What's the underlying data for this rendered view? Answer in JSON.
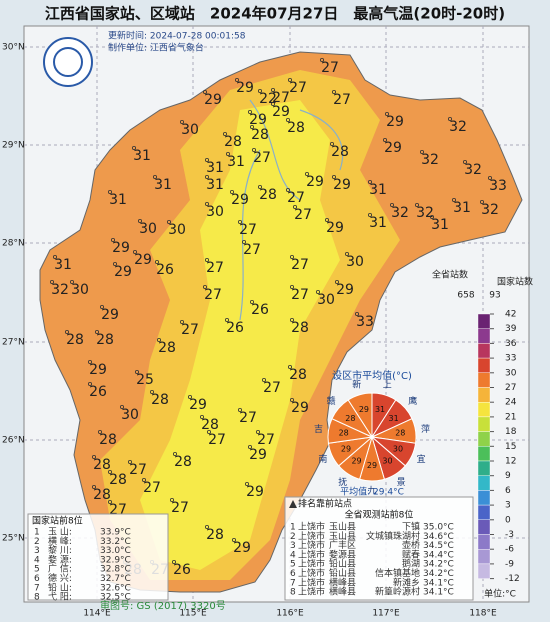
{
  "header": {
    "title": "江西省国家站、区域站　2024年07月27日　最高气温(20时-20时)",
    "update_time": "更新时间: 2024-07-28 00:01:58",
    "producer": "制作单位: 江西省气象台"
  },
  "map": {
    "lat_labels": [
      "30°N",
      "29°N",
      "28°N",
      "27°N",
      "26°N",
      "25°N"
    ],
    "lon_labels": [
      "114°E",
      "115°E",
      "116°E",
      "117°E",
      "118°E"
    ],
    "stations": [
      29,
      22,
      27,
      27,
      27,
      29,
      29,
      29,
      28,
      27,
      29,
      32,
      31,
      30,
      28,
      28,
      27,
      31,
      31,
      31,
      28,
      29,
      32,
      32,
      33,
      31,
      31,
      30,
      29,
      28,
      27,
      29,
      29,
      31,
      32,
      32,
      31,
      32,
      30,
      30,
      27,
      27,
      29,
      31,
      31,
      31,
      29,
      29,
      29,
      26,
      27,
      27,
      27,
      30,
      32,
      30,
      27,
      26,
      27,
      30,
      29,
      29,
      27,
      26,
      28,
      33,
      28,
      28,
      28,
      29,
      25,
      27,
      28,
      26,
      28,
      29,
      29,
      30,
      28,
      27,
      27,
      28,
      27,
      28,
      29,
      28,
      27,
      28,
      28,
      27,
      27,
      29,
      27,
      28,
      29,
      28,
      27,
      26
    ],
    "approval": "审图号: GS (2017) 3320号"
  },
  "pie": {
    "title": "设区市平均值(°C)",
    "cities": [
      "上",
      "鹰",
      "萍",
      "宜",
      "景",
      "九",
      "抚",
      "南",
      "吉",
      "赣",
      "新"
    ],
    "values": [
      31,
      31,
      28,
      30,
      30,
      29,
      29,
      29,
      28,
      28,
      29
    ],
    "average": "平均值: 29.4°C"
  },
  "legend": {
    "all_label": "全省站数",
    "all_count": 658,
    "national_label": "国家站数",
    "national_count": 93,
    "ticks": [
      42,
      39,
      36,
      33,
      30,
      27,
      24,
      21,
      18,
      15,
      12,
      9,
      6,
      3,
      0,
      -3,
      -6,
      -9,
      -12
    ],
    "colors": [
      "#6a2372",
      "#8c3a8e",
      "#b8365e",
      "#d8452e",
      "#ee7a2e",
      "#f5b43a",
      "#f5e43e",
      "#c8e03a",
      "#8fd24a",
      "#4cbf5a",
      "#2fae8a",
      "#33b8c8",
      "#3b8fd6",
      "#4a64c8",
      "#6a5ab8",
      "#8c7ac8",
      "#a898d4",
      "#c6baE2"
    ],
    "unit": "单位:°C"
  },
  "national_top": {
    "title": "国家站前8位",
    "rows": [
      {
        "rank": 1,
        "name": "玉 山:",
        "value": "33.9°C"
      },
      {
        "rank": 2,
        "name": "横 峰:",
        "value": "33.2°C"
      },
      {
        "rank": 3,
        "name": "黎 川:",
        "value": "33.0°C"
      },
      {
        "rank": 4,
        "name": "婺 源:",
        "value": "32.9°C"
      },
      {
        "rank": 5,
        "name": "广 信:",
        "value": "32.8°C"
      },
      {
        "rank": 6,
        "name": "德 兴:",
        "value": "32.7°C"
      },
      {
        "rank": 7,
        "name": "铅 山:",
        "value": "32.6°C"
      },
      {
        "rank": 8,
        "name": "弋 阳:",
        "value": "32.5°C"
      }
    ]
  },
  "all_top": {
    "heading": "排名靠前站点",
    "title": "全省观测站前8位",
    "rows": [
      {
        "rank": 1,
        "city": "上饶市",
        "county": "玉山县",
        "station": "下镇",
        "value": "35.0°C"
      },
      {
        "rank": 2,
        "city": "上饶市",
        "county": "玉山县",
        "station": "文城镇珠湖村",
        "value": "34.6°C"
      },
      {
        "rank": 3,
        "city": "上饶市",
        "county": "广丰区",
        "station": "壶桥",
        "value": "34.5°C"
      },
      {
        "rank": 4,
        "city": "上饶市",
        "county": "婺源县",
        "station": "赋春",
        "value": "34.4°C"
      },
      {
        "rank": 5,
        "city": "上饶市",
        "county": "铅山县",
        "station": "鹅湖",
        "value": "34.2°C"
      },
      {
        "rank": 6,
        "city": "上饶市",
        "county": "铅山县",
        "station": "信本镇基地",
        "value": "34.2°C"
      },
      {
        "rank": 7,
        "city": "上饶市",
        "county": "横峰县",
        "station": "新滩乡",
        "value": "34.1°C"
      },
      {
        "rank": 8,
        "city": "上饶市",
        "county": "横峰县",
        "station": "新篁岭源村",
        "value": "34.1°C"
      }
    ]
  }
}
